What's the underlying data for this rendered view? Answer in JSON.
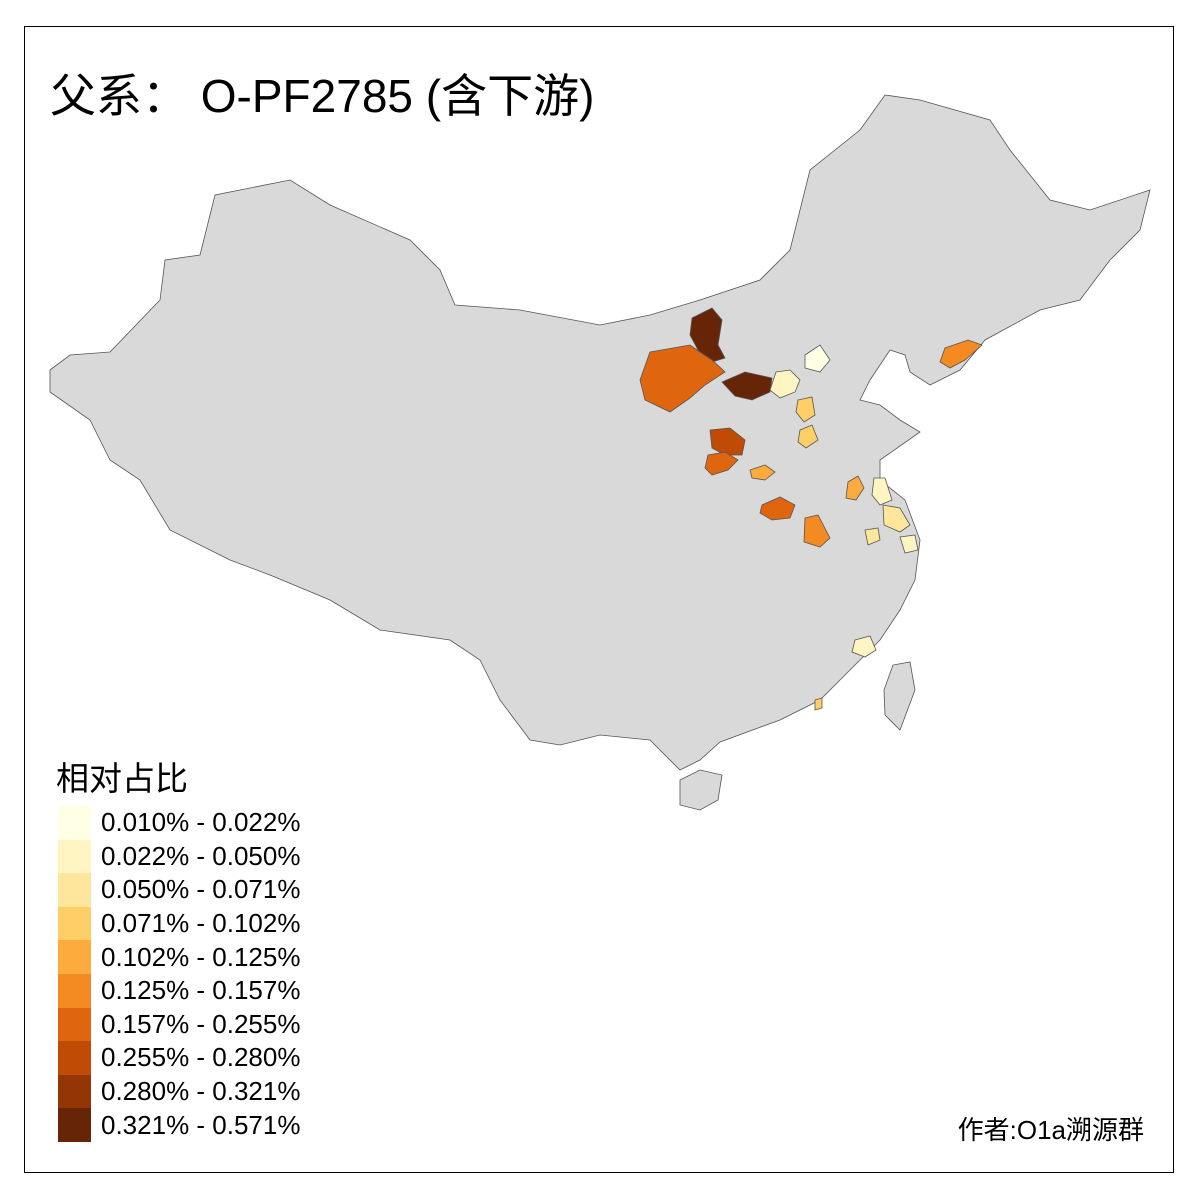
{
  "title": "父系： O-PF2785 (含下游)",
  "legend": {
    "title": "相对占比",
    "items": [
      {
        "label": "0.010% - 0.022%",
        "color": "#FFFFE5"
      },
      {
        "label": "0.022% - 0.050%",
        "color": "#FFF5C2"
      },
      {
        "label": "0.050% - 0.071%",
        "color": "#FEE69C"
      },
      {
        "label": "0.071% - 0.102%",
        "color": "#FECF67"
      },
      {
        "label": "0.102% - 0.125%",
        "color": "#FDAB3C"
      },
      {
        "label": "0.125% - 0.157%",
        "color": "#F38A22"
      },
      {
        "label": "0.157% - 0.255%",
        "color": "#E0650F"
      },
      {
        "label": "0.255% - 0.280%",
        "color": "#C04B04"
      },
      {
        "label": "0.280% - 0.321%",
        "color": "#943506"
      },
      {
        "label": "0.321% - 0.571%",
        "color": "#662506"
      }
    ]
  },
  "map": {
    "land_color": "#D9D9D9",
    "border_color": "#555555",
    "no_data_color": "#D9D9D9"
  },
  "author": "作者:O1a溯源群"
}
